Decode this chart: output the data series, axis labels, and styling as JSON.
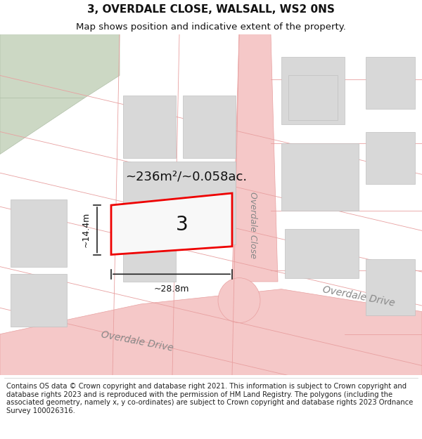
{
  "title": "3, OVERDALE CLOSE, WALSALL, WS2 0NS",
  "subtitle": "Map shows position and indicative extent of the property.",
  "footer": "Contains OS data © Crown copyright and database right 2021. This information is subject to Crown copyright and database rights 2023 and is reproduced with the permission of HM Land Registry. The polygons (including the associated geometry, namely x, y co-ordinates) are subject to Crown copyright and database rights 2023 Ordnance Survey 100026316.",
  "bg_color": "#ffffff",
  "map_bg": "#f0f0f0",
  "road_color": "#f5c8c8",
  "road_outline": "#e8a0a0",
  "building_fill": "#d8d8d8",
  "building_outline": "#c0c0c0",
  "green_fill": "#ccd8c4",
  "green_outline": "#b0c0a8",
  "plot_color": "#ee0000",
  "dim_color": "#222222",
  "area_text": "~236m²/~0.058ac.",
  "number_text": "3",
  "dim_width": "~28.8m",
  "dim_height": "~14.4m",
  "street_drive_bottom": "Overdale Drive",
  "street_close": "Overdale Close",
  "street_drive_right": "Overdale Drive",
  "title_fontsize": 11,
  "subtitle_fontsize": 9.5,
  "footer_fontsize": 7.2
}
